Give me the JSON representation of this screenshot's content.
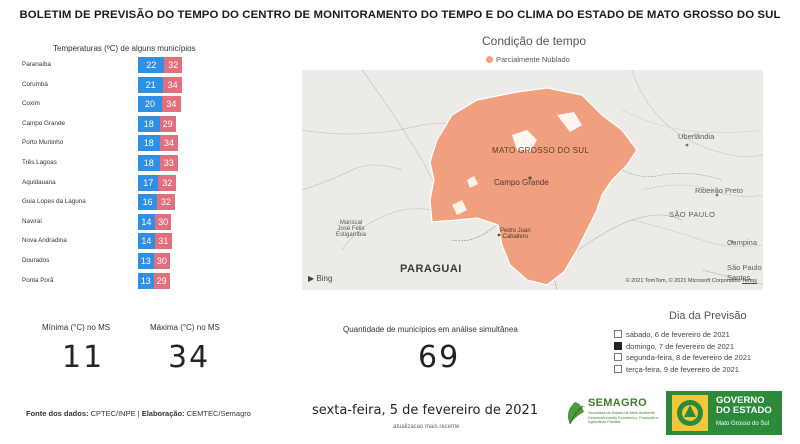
{
  "header": {
    "title": "BOLETIM DE PREVISÃO DO TEMPO DO CENTRO DE MONITORAMENTO DO TEMPO E DO CLIMA DO ESTADO DE MATO GROSSO DO SUL"
  },
  "chart_data": {
    "type": "bar",
    "title": "Temperaturas (ºC) de alguns municípios",
    "categories": [
      "Paranaíba",
      "Corumbá",
      "Coxim",
      "Campo Grande",
      "Porto Murtinho",
      "Três Lagoas",
      "Aquidauana",
      "Guia Lopes da Laguna",
      "Naviraí",
      "Nova Andradina",
      "Dourados",
      "Ponta Porã"
    ],
    "series": [
      {
        "values": [
          22,
          21,
          20,
          18,
          18,
          18,
          17,
          16,
          14,
          14,
          13,
          13
        ],
        "color": "#2f8fe3"
      },
      {
        "values": [
          32,
          34,
          34,
          29,
          34,
          33,
          32,
          32,
          30,
          31,
          30,
          29
        ],
        "color": "#e26f7d"
      }
    ],
    "stacked": true,
    "orientation": "horizontal",
    "xlim": [
      0,
      68
    ]
  },
  "map": {
    "title": "Condição de tempo",
    "legend_label": "Parcialmente Nublado",
    "legend_color": "#f0a07e",
    "labels": {
      "state": "MATO GROSSO DO SUL",
      "capital": "Campo Grande",
      "pedro_juan": "Pedro Juan\nCaballero",
      "mariscal": "Mariscal\nJosé Félix\nEstigarribia",
      "paraguai": "PARAGUAI",
      "uberlandia": "Uberlândia",
      "ribeirao": "Ribeirão Preto",
      "sao_paulo_state": "SÃO PAULO",
      "campinas": "Campina",
      "sao_paulo_city": "São Paulo",
      "santos": "Santos"
    },
    "bing": "Bing",
    "copyright": "© 2021 TomTom, © 2021 Microsoft Corporation",
    "terms": "Terms"
  },
  "kpis": {
    "min_label": "Mínima (°C) no MS",
    "min_value": "11",
    "max_label": "Máxima (°C) no MS",
    "max_value": "34",
    "count_label": "Quantidade de municípios em análise simultânea",
    "count_value": "69"
  },
  "slicer": {
    "title": "Dia da Previsão",
    "items": [
      {
        "label": "sábado, 6 de fevereiro de 2021",
        "checked": false
      },
      {
        "label": "domingo, 7 de fevereiro de 2021",
        "checked": true
      },
      {
        "label": "segunda-feira, 8 de fevereiro de 2021",
        "checked": false
      },
      {
        "label": "terça-feira, 9 de fevereiro de 2021",
        "checked": false
      }
    ]
  },
  "footer": {
    "source_label": "Fonte dos dados:",
    "source_value": " CPTEC/INPE | ",
    "elab_label": "Elaboração:",
    "elab_value": " CEMTEC/Semagro",
    "date": "sexta-feira, 5 de fevereiro de 2021",
    "date_sub": "atualizacao mais recente"
  },
  "logos": {
    "semagro_name": "SEMAGRO",
    "semagro_desc": "Secretaria de Estado de Meio Ambiente, Desenvolvimento Econômico, Produção e Agricultura Familiar",
    "gov_name": "GOVERNO DO ESTADO",
    "gov_sub": "Mato Grosso do Sul"
  }
}
